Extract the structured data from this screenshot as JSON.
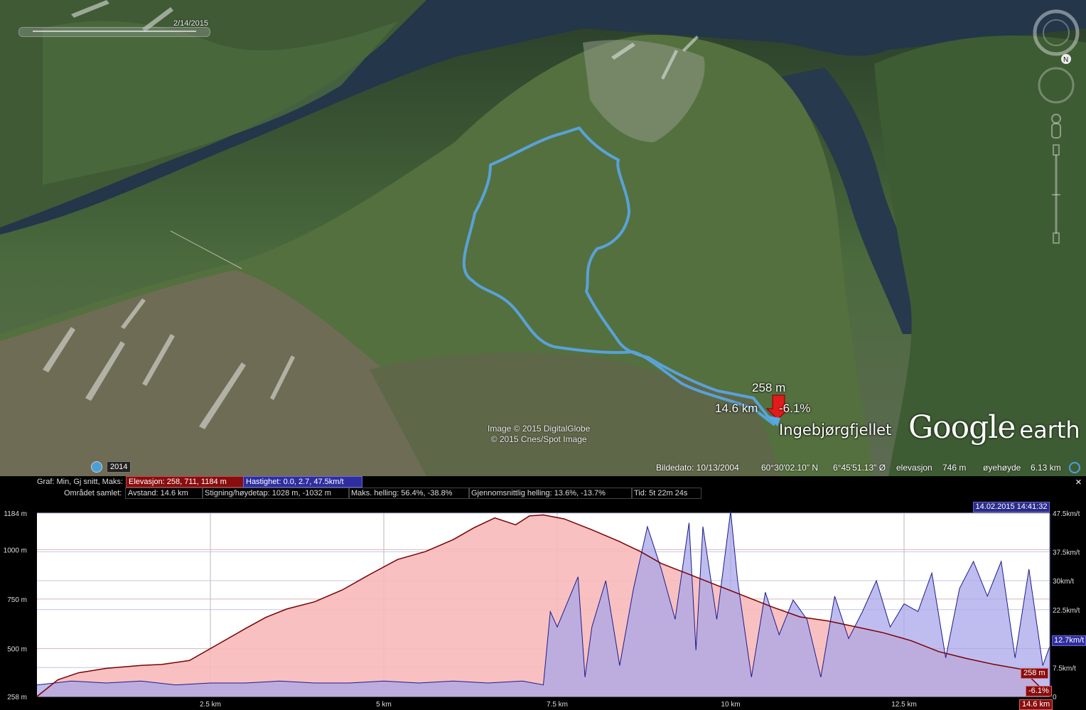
{
  "viewport": {
    "time_slider_date": "2/14/2015",
    "track_label_elevation": "258 m",
    "track_label_distance": "14.6 km",
    "track_label_grade": "-6.1%",
    "place_label": "Ingebjørgfjellet",
    "copyright_line1": "Image © 2015 DigitalGlobe",
    "copyright_line2": "© 2015 Cnes/Spot Image",
    "logo_google": "Google",
    "logo_earth": "earth",
    "historical_year": "2014",
    "compass_north": "N"
  },
  "statusbar": {
    "image_date_label": "Bildedato: 10/13/2004",
    "latitude": "60°30'02.10\" N",
    "longitude": "6°45'51.13\" Ø",
    "elevation_label": "elevasjon",
    "elevation_value": "746 m",
    "eye_alt_label": "øyehøyde",
    "eye_alt_value": "6.13 km"
  },
  "profile": {
    "graph_label": "Graf: Min, Gj snitt, Maks:",
    "elevation_stats": "Elevasjon: 258, 711, 1184 m",
    "speed_stats": "Hastighet: 0.0, 2.7, 47.5km/t",
    "area_label": "Området samlet:",
    "distance": "Avstand: 14.6 km",
    "gain_loss": "Stigning/høydetap: 1028 m, -1032 m",
    "max_slope": "Maks. helling: 56.4%, -38.8%",
    "avg_slope": "Gjennomsnittlig helling: 13.6%, -13.7%",
    "time": "Tid: 5t 22m 24s",
    "close": "×",
    "timestamp": "14.02.2015 14:41:32",
    "cursor_elev": "258 m",
    "cursor_grade": "-6.1%",
    "cursor_dist": "14.6 km",
    "cursor_speed": "12.7km/t"
  },
  "chart_data": {
    "type": "area",
    "xlabel": "",
    "ylabel": "",
    "xlim": [
      0,
      14.6
    ],
    "x_ticks": [
      {
        "v": 2.5,
        "label": "2.5 km"
      },
      {
        "v": 5,
        "label": "5 km"
      },
      {
        "v": 7.5,
        "label": "7.5 km"
      },
      {
        "v": 10,
        "label": "10 km"
      },
      {
        "v": 12.5,
        "label": "12.5 km"
      }
    ],
    "y_left_ticks": [
      {
        "v": 258,
        "label": "258 m"
      },
      {
        "v": 500,
        "label": "500 m"
      },
      {
        "v": 750,
        "label": "750 m"
      },
      {
        "v": 1000,
        "label": "1000 m"
      },
      {
        "v": 1184,
        "label": "1184 m"
      }
    ],
    "y_left_lim": [
      258,
      1184
    ],
    "y_right_ticks": [
      {
        "v": 0,
        "label": "0"
      },
      {
        "v": 7.5,
        "label": "7.5km/t"
      },
      {
        "v": 22.5,
        "label": "22.5km/t"
      },
      {
        "v": 30,
        "label": "30km/t"
      },
      {
        "v": 37.5,
        "label": "37.5km/t"
      },
      {
        "v": 47.5,
        "label": "47.5km/t"
      }
    ],
    "y_right_lim": [
      0,
      47.5
    ],
    "colors": {
      "elevation_fill": "#f7b9b9",
      "elevation_line": "#7a0000",
      "speed_fill": "#a9a7ea",
      "speed_line": "#1b1b8a"
    },
    "series": [
      {
        "name": "Elevasjon",
        "x": [
          0,
          0.3,
          0.6,
          1.0,
          1.5,
          1.8,
          2.2,
          2.6,
          3.0,
          3.3,
          3.6,
          4.0,
          4.4,
          4.8,
          5.2,
          5.6,
          6.0,
          6.3,
          6.6,
          6.9,
          7.1,
          7.3,
          7.6,
          8.0,
          8.4,
          8.7,
          9.0,
          9.4,
          9.8,
          10.2,
          10.6,
          11.0,
          11.4,
          11.8,
          12.2,
          12.6,
          13.0,
          13.4,
          13.8,
          14.2,
          14.6
        ],
        "y": [
          258,
          342,
          378,
          400,
          415,
          420,
          440,
          520,
          600,
          658,
          700,
          736,
          796,
          875,
          950,
          990,
          1050,
          1110,
          1160,
          1125,
          1170,
          1175,
          1155,
          1100,
          1040,
          990,
          930,
          875,
          820,
          765,
          710,
          660,
          640,
          610,
          580,
          540,
          485,
          450,
          420,
          395,
          258
        ]
      },
      {
        "name": "Hastighet",
        "x": [
          0,
          0.5,
          1.0,
          1.5,
          2.0,
          2.5,
          3.0,
          3.5,
          4.0,
          4.5,
          5.0,
          5.5,
          6.0,
          6.5,
          7.0,
          7.3,
          7.4,
          7.5,
          7.8,
          7.9,
          8.0,
          8.2,
          8.4,
          8.6,
          8.8,
          9.0,
          9.2,
          9.4,
          9.5,
          9.6,
          9.8,
          10.0,
          10.1,
          10.3,
          10.5,
          10.7,
          10.9,
          11.1,
          11.3,
          11.5,
          11.7,
          11.9,
          12.1,
          12.3,
          12.5,
          12.7,
          12.9,
          13.1,
          13.3,
          13.5,
          13.7,
          13.9,
          14.1,
          14.3,
          14.5,
          14.6
        ],
        "y": [
          3,
          4,
          3.5,
          4,
          3,
          3.5,
          3.5,
          4,
          3.5,
          3.5,
          4,
          3.5,
          4,
          3.5,
          4,
          3,
          22,
          18,
          31,
          5,
          18,
          30,
          8,
          28,
          44,
          33,
          20,
          45,
          12,
          44,
          20,
          48,
          30,
          5,
          27,
          16,
          25,
          20,
          5,
          26,
          15,
          22,
          30,
          18,
          24,
          22,
          32,
          10,
          28,
          35,
          26,
          35,
          10,
          33,
          8,
          13
        ]
      }
    ]
  }
}
